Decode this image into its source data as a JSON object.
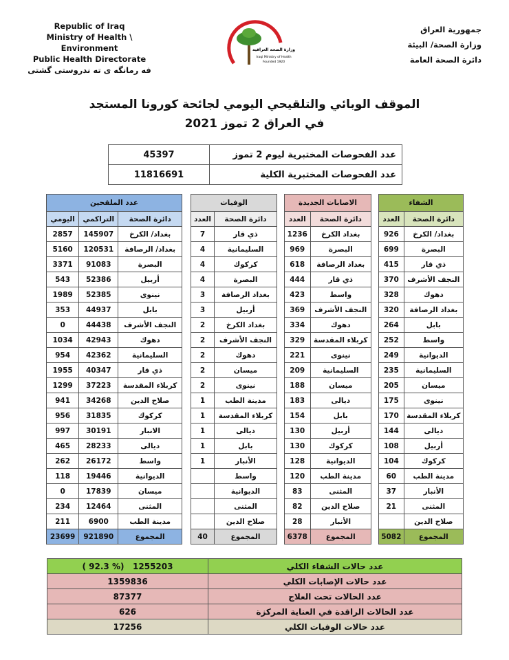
{
  "header": {
    "left": [
      "Republic of Iraq",
      "Ministry of Health \\ Environment",
      "Public Health Directorate",
      "فه رمانگه ى ته ندروستى گشتى"
    ],
    "right": [
      "جمهورية العراق",
      "وزارة الصحة/ البيئة",
      "دائرة الصحة العامة"
    ],
    "logo": [
      "وزارة الصحة العراقية",
      "Iraqi Ministry of Health",
      "Founded 1920"
    ]
  },
  "title": [
    "الموقف الوبائي والتلقيحي اليومي لجائحة كورونا المستجد",
    "في العراق 2 تموز 2021"
  ],
  "tests": {
    "rows": [
      [
        "عدد الفحوصات المختبرية ليوم 2 تموز",
        45397
      ],
      [
        "عدد الفحوصات المختبرية الكلية",
        11816691
      ]
    ]
  },
  "tables": [
    {
      "title": "الشفاء",
      "color": "#9bbb59",
      "light": "#d8e4bc",
      "columns": [
        "دائرة الصحة",
        "العدد"
      ],
      "rows": [
        [
          "بغداد/ الكرخ",
          926
        ],
        [
          "البصرة",
          699
        ],
        [
          "ذي قار",
          415
        ],
        [
          "النجف الأشرف",
          370
        ],
        [
          "دهوك",
          328
        ],
        [
          "بغداد الرصافة",
          320
        ],
        [
          "بابل",
          264
        ],
        [
          "واسط",
          252
        ],
        [
          "الديوانية",
          249
        ],
        [
          "السليمانية",
          235
        ],
        [
          "ميسان",
          205
        ],
        [
          "نينوى",
          175
        ],
        [
          "كربلاء المقدسة",
          170
        ],
        [
          "ديالى",
          144
        ],
        [
          "أربيل",
          108
        ],
        [
          "كركوك",
          104
        ],
        [
          "مدينة الطب",
          60
        ],
        [
          "الأنبار",
          37
        ],
        [
          "المثنى",
          21
        ],
        [
          "صلاح الدين",
          null
        ]
      ],
      "total": [
        "المجموع",
        5082
      ]
    },
    {
      "title": "الاصابات الجديدة",
      "color": "#e6b8b7",
      "light": "#f2dcdb",
      "columns": [
        "دائرة الصحة",
        "العدد"
      ],
      "rows": [
        [
          "بغداد الكرخ",
          1236
        ],
        [
          "البصرة",
          969
        ],
        [
          "بغداد الرصافة",
          618
        ],
        [
          "ذي قار",
          444
        ],
        [
          "واسط",
          423
        ],
        [
          "النجف الأشرف",
          369
        ],
        [
          "دهوك",
          334
        ],
        [
          "كربلاء المقدسة",
          329
        ],
        [
          "نينوى",
          221
        ],
        [
          "السليمانية",
          209
        ],
        [
          "ميسان",
          188
        ],
        [
          "ديالى",
          183
        ],
        [
          "بابل",
          154
        ],
        [
          "أربيل",
          130
        ],
        [
          "كركوك",
          130
        ],
        [
          "الديوانية",
          128
        ],
        [
          "مدينة الطب",
          120
        ],
        [
          "المثنى",
          83
        ],
        [
          "صلاح الدين",
          82
        ],
        [
          "الأنبار",
          28
        ]
      ],
      "total": [
        "المجموع",
        6378
      ]
    },
    {
      "title": "الوفيات",
      "color": "#d9d9d9",
      "light": "#eeeeee",
      "columns": [
        "دائرة الصحة",
        "العدد"
      ],
      "rows": [
        [
          "ذي قار",
          7
        ],
        [
          "السليمانية",
          4
        ],
        [
          "كركوك",
          4
        ],
        [
          "البصرة",
          4
        ],
        [
          "بغداد الرصافة",
          3
        ],
        [
          "أربيل",
          3
        ],
        [
          "بغداد الكرخ",
          2
        ],
        [
          "النجف الأشرف",
          2
        ],
        [
          "دهوك",
          2
        ],
        [
          "ميسان",
          2
        ],
        [
          "نينوى",
          2
        ],
        [
          "مدينة الطب",
          1
        ],
        [
          "كربلاء المقدسة",
          1
        ],
        [
          "ديالى",
          1
        ],
        [
          "بابل",
          1
        ],
        [
          "الأنبار",
          1
        ],
        [
          "واسط",
          null
        ],
        [
          "الديوانية",
          null
        ],
        [
          "المثنى",
          null
        ],
        [
          "صلاح الدين",
          null
        ]
      ],
      "total": [
        "المجموع",
        40
      ]
    },
    {
      "title": "عدد الملقحين",
      "color": "#8db3e2",
      "light": "#c5d9f1",
      "columns": [
        "دائرة الصحة",
        "التراكمي",
        "اليومي"
      ],
      "rows": [
        [
          "بغداد/ الكرخ",
          145907,
          2857
        ],
        [
          "بغداد/ الرصافة",
          120531,
          5160
        ],
        [
          "البصرة",
          91083,
          3371
        ],
        [
          "أربيل",
          52386,
          543
        ],
        [
          "نينوى",
          52385,
          1989
        ],
        [
          "بابل",
          44937,
          353
        ],
        [
          "النجف الأشرف",
          44438,
          0
        ],
        [
          "دهوك",
          42943,
          1034
        ],
        [
          "السليمانية",
          42362,
          954
        ],
        [
          "ذي قار",
          40347,
          1955
        ],
        [
          "كربلاء المقدسة",
          37223,
          1299
        ],
        [
          "صلاح الدين",
          34268,
          941
        ],
        [
          "كركوك",
          31835,
          956
        ],
        [
          "الانبار",
          30191,
          997
        ],
        [
          "ديالى",
          28233,
          465
        ],
        [
          "واسط",
          26172,
          262
        ],
        [
          "الديوانية",
          19446,
          118
        ],
        [
          "ميسان",
          17839,
          0
        ],
        [
          "المثنى",
          12464,
          234
        ],
        [
          "مدينة الطب",
          6900,
          211
        ]
      ],
      "total": [
        "المجموع",
        921890,
        23699
      ]
    }
  ],
  "summary": {
    "rows": [
      {
        "label": "عدد حالات الشفاء الكلي",
        "value": 1255203,
        "percent": "( 92.3 %)",
        "color": "#92d050"
      },
      {
        "label": "عدد حالات الإصابات الكلي",
        "value": 1359836,
        "color": "#e6b8b7"
      },
      {
        "label": "عدد الحالات تحت العلاج",
        "value": 87377,
        "color": "#e6b8b7"
      },
      {
        "label": "عدد الحالات الراقدة في العناية المركزة",
        "value": 626,
        "color": "#e6b8b7"
      },
      {
        "label": "عدد حالات الوفيات الكلي",
        "value": 17256,
        "color": "#ddd9c4"
      }
    ]
  }
}
